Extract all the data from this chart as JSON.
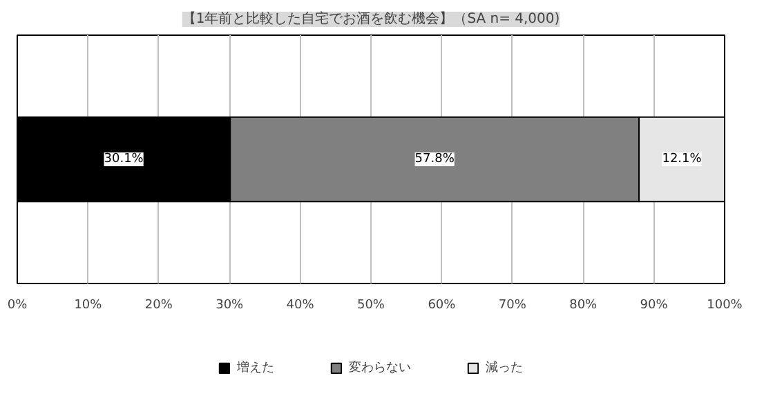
{
  "chart_data": {
    "type": "bar",
    "orientation": "horizontal",
    "stacked": true,
    "title": "【1年前と比較した自宅でお酒を飲む機会】（SA n= 4,000)",
    "categories": [
      null
    ],
    "series": [
      {
        "name": "増えた",
        "color": "#000000",
        "values": [
          30.1
        ],
        "value_labels": [
          "30.1%"
        ]
      },
      {
        "name": "変わらない",
        "color": "#808080",
        "values": [
          57.8
        ],
        "value_labels": [
          "57.8%"
        ]
      },
      {
        "name": "減った",
        "color": "#e6e6e6",
        "values": [
          12.1
        ],
        "value_labels": [
          "12.1%"
        ]
      }
    ],
    "xlim": [
      0,
      100
    ],
    "xticks": [
      {
        "value": 0,
        "label": "0%"
      },
      {
        "value": 10,
        "label": "10%"
      },
      {
        "value": 20,
        "label": "20%"
      },
      {
        "value": 30,
        "label": "30%"
      },
      {
        "value": 40,
        "label": "40%"
      },
      {
        "value": 50,
        "label": "50%"
      },
      {
        "value": 60,
        "label": "60%"
      },
      {
        "value": 70,
        "label": "70%"
      },
      {
        "value": 80,
        "label": "80%"
      },
      {
        "value": 90,
        "label": "90%"
      },
      {
        "value": 100,
        "label": "100%"
      }
    ],
    "grid": "x",
    "legend": "bottom"
  }
}
